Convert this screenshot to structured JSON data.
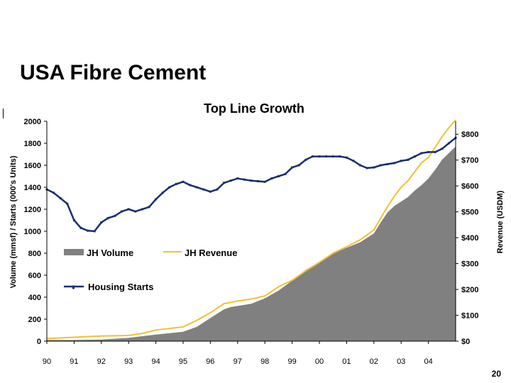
{
  "slide": {
    "title": "USA Fibre Cement",
    "page_number": "20"
  },
  "chart_data": {
    "type": "area",
    "title": "Top Line Growth",
    "ylabel": "Volume (mmsf)  /  Starts (000's Units)",
    "y2label": "Revenue (USDM)",
    "ylim": [
      0,
      2000
    ],
    "y2lim": [
      0,
      850
    ],
    "yticks": [
      0,
      200,
      400,
      600,
      800,
      1000,
      1200,
      1400,
      1600,
      1800,
      2000
    ],
    "y2ticks": [
      0,
      100,
      200,
      300,
      400,
      500,
      600,
      700,
      800
    ],
    "y2ticklabels": [
      "$0",
      "$100",
      "$200",
      "$300",
      "$400",
      "$500",
      "$600",
      "$700",
      "$800"
    ],
    "xlim": [
      0,
      15
    ],
    "xticks": [
      0,
      1,
      2,
      3,
      4,
      5,
      6,
      7,
      8,
      9,
      10,
      11,
      12,
      13,
      14
    ],
    "xticklabels": [
      "90",
      "91",
      "92",
      "93",
      "94",
      "95",
      "96",
      "97",
      "98",
      "99",
      "00",
      "01",
      "02",
      "03",
      "04"
    ],
    "grid": false,
    "legend_position": "center-left",
    "series": [
      {
        "name": "JH Volume",
        "axis": "left",
        "kind": "area",
        "color": "#808080",
        "x": [
          0,
          1,
          2,
          3,
          3.5,
          4,
          5,
          5.5,
          6,
          6.5,
          6.75,
          7,
          7.5,
          8,
          8.5,
          9,
          9.5,
          10,
          10.5,
          11,
          11.5,
          12,
          12.25,
          12.5,
          12.75,
          13,
          13.25,
          13.5,
          13.75,
          14,
          14.25,
          14.5,
          14.75,
          15
        ],
        "y": [
          10,
          10,
          15,
          30,
          45,
          60,
          85,
          130,
          210,
          290,
          310,
          320,
          340,
          390,
          460,
          550,
          650,
          720,
          800,
          850,
          900,
          980,
          1080,
          1170,
          1230,
          1270,
          1310,
          1370,
          1420,
          1480,
          1560,
          1650,
          1710,
          1770
        ]
      },
      {
        "name": "JH Revenue",
        "axis": "right",
        "kind": "line",
        "color": "#f2c12e",
        "x": [
          0,
          1,
          2,
          3,
          3.5,
          4,
          5,
          5.5,
          6,
          6.5,
          6.75,
          7,
          7.5,
          8,
          8.5,
          9,
          9.5,
          10,
          10.5,
          11,
          11.5,
          12,
          12.25,
          12.5,
          12.75,
          13,
          13.25,
          13.5,
          13.75,
          14,
          14.25,
          14.5,
          14.75,
          15
        ],
        "y": [
          10,
          15,
          20,
          22,
          30,
          43,
          55,
          80,
          110,
          145,
          150,
          155,
          163,
          175,
          210,
          235,
          272,
          305,
          340,
          365,
          392,
          430,
          475,
          520,
          560,
          595,
          620,
          655,
          690,
          710,
          750,
          790,
          825,
          855
        ]
      },
      {
        "name": "Housing Starts",
        "axis": "left",
        "kind": "line",
        "marker": "dot",
        "color": "#1a2e6e",
        "x": [
          0,
          0.25,
          0.5,
          0.75,
          1,
          1.25,
          1.5,
          1.75,
          2,
          2.25,
          2.5,
          2.75,
          3,
          3.25,
          3.5,
          3.75,
          4,
          4.25,
          4.5,
          4.75,
          5,
          5.25,
          5.5,
          5.75,
          6,
          6.25,
          6.5,
          6.75,
          7,
          7.25,
          7.5,
          7.75,
          8,
          8.25,
          8.5,
          8.75,
          9,
          9.25,
          9.5,
          9.75,
          10,
          10.25,
          10.5,
          10.75,
          11,
          11.25,
          11.5,
          11.75,
          12,
          12.25,
          12.5,
          12.75,
          13,
          13.25,
          13.5,
          13.75,
          14,
          14.25,
          14.5,
          14.75,
          15
        ],
        "y": [
          1380,
          1350,
          1300,
          1250,
          1100,
          1030,
          1005,
          1000,
          1080,
          1120,
          1140,
          1180,
          1200,
          1180,
          1200,
          1220,
          1290,
          1350,
          1400,
          1430,
          1450,
          1420,
          1400,
          1380,
          1360,
          1380,
          1440,
          1460,
          1480,
          1470,
          1460,
          1455,
          1450,
          1480,
          1500,
          1520,
          1580,
          1600,
          1650,
          1680,
          1680,
          1680,
          1680,
          1680,
          1670,
          1640,
          1600,
          1575,
          1580,
          1600,
          1610,
          1620,
          1640,
          1650,
          1680,
          1710,
          1720,
          1720,
          1750,
          1800,
          1850
        ]
      }
    ]
  }
}
